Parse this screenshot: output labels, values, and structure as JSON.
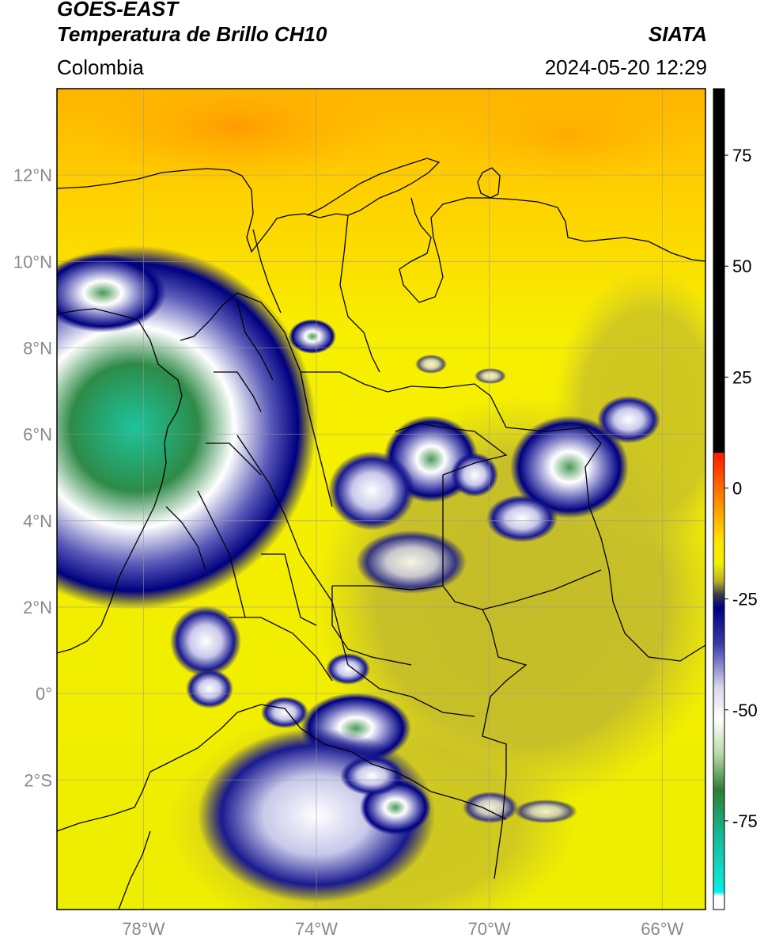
{
  "header": {
    "line1": "GOES-EAST",
    "line2": "Temperatura de Brillo CH10",
    "source": "SIATA",
    "region": "Colombia",
    "datetime": "2024-05-20 12:29"
  },
  "map": {
    "lat_ticks": [
      "12°N",
      "10°N",
      "8°N",
      "6°N",
      "4°N",
      "2°N",
      "0°",
      "2°S"
    ],
    "lon_ticks": [
      "78°W",
      "74°W",
      "70°W",
      "66°W"
    ],
    "extent": {
      "lon_min": -80.0,
      "lon_max": -65.0,
      "lat_min": -5.0,
      "lat_max": 14.0
    }
  },
  "colorbar": {
    "ticks": [
      "75",
      "50",
      "25",
      "0",
      "-25",
      "-50",
      "-75"
    ],
    "tick_values": [
      75,
      50,
      25,
      0,
      -25,
      -50,
      -75
    ],
    "range": [
      -95,
      90
    ],
    "stops": [
      {
        "v": 90,
        "c": "#000000"
      },
      {
        "v": 8,
        "c": "#000000"
      },
      {
        "v": 7.9,
        "c": "#ff1a00"
      },
      {
        "v": -3,
        "c": "#ff8c00"
      },
      {
        "v": -12,
        "c": "#ffe400"
      },
      {
        "v": -17,
        "c": "#f2f000"
      },
      {
        "v": -21,
        "c": "#b8b028"
      },
      {
        "v": -24,
        "c": "#3a3a4a"
      },
      {
        "v": -27,
        "c": "#000080"
      },
      {
        "v": -35,
        "c": "#3a3aa8"
      },
      {
        "v": -45,
        "c": "#d8d8ee"
      },
      {
        "v": -52,
        "c": "#ffffff"
      },
      {
        "v": -60,
        "c": "#b8d8a8"
      },
      {
        "v": -68,
        "c": "#2e7d32"
      },
      {
        "v": -78,
        "c": "#18b894"
      },
      {
        "v": -88,
        "c": "#10e0d0"
      },
      {
        "v": -91,
        "c": "#00f0f0"
      },
      {
        "v": -92,
        "c": "#ffffff"
      },
      {
        "v": -95,
        "c": "#ffffff"
      }
    ]
  }
}
